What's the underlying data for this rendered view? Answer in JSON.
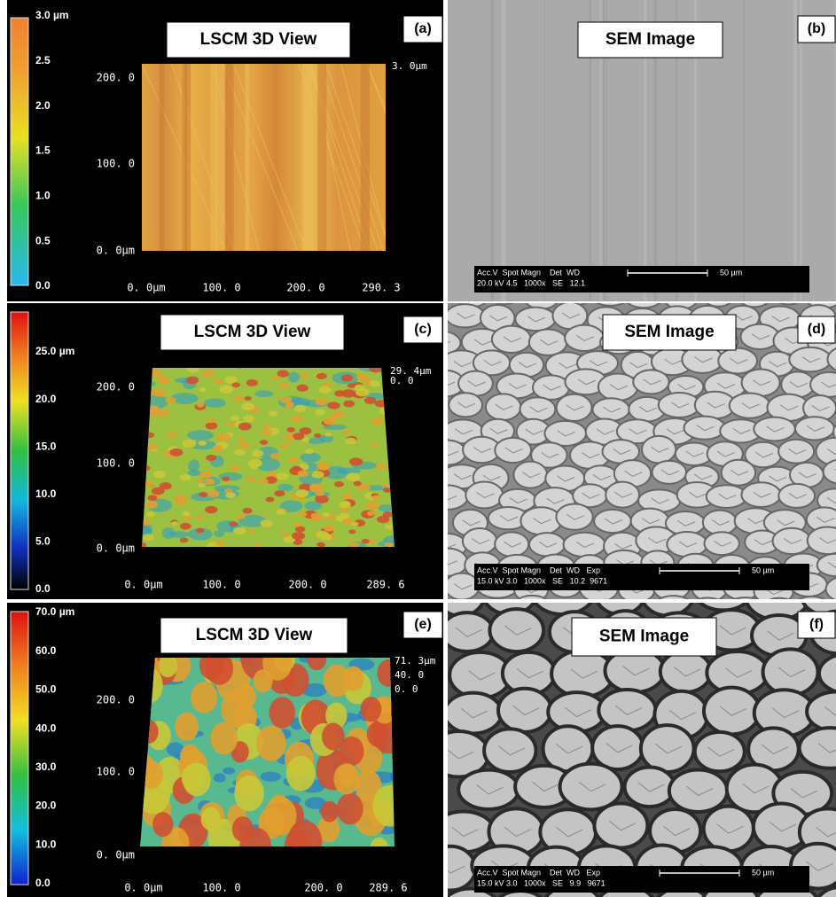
{
  "lscm": [
    {
      "label": "(a)",
      "title": "LSCM 3D View",
      "colorbar": [
        "3.0 µm",
        "2.5",
        "2.0",
        "1.5",
        "1.0",
        "0.5",
        "0.0"
      ],
      "y_labels": [
        "200. 0",
        "100. 0",
        "0. 0µm"
      ],
      "x_labels": [
        "0. 0µm",
        "100. 0",
        "200. 0",
        "290. 3"
      ],
      "z_labels": [
        "3. 0µm"
      ]
    },
    {
      "label": "(c)",
      "title": "LSCM 3D View",
      "colorbar": [
        "25.0 µm",
        "20.0",
        "15.0",
        "10.0",
        "5.0",
        "0.0"
      ],
      "y_labels": [
        "200. 0",
        "100. 0",
        "0. 0µm"
      ],
      "x_labels": [
        "0. 0µm",
        "100. 0",
        "200. 0",
        "289. 6"
      ],
      "z_labels": [
        "29. 4µm",
        "0. 0"
      ]
    },
    {
      "label": "(e)",
      "title": "LSCM 3D View",
      "colorbar": [
        "70.0 µm",
        "60.0",
        "50.0",
        "40.0",
        "30.0",
        "20.0",
        "10.0",
        "0.0"
      ],
      "y_labels": [
        "200. 0",
        "100. 0",
        "0. 0µm"
      ],
      "x_labels": [
        "0. 0µm",
        "100. 0",
        "200. 0",
        "289. 6"
      ],
      "z_labels": [
        "71. 3µm",
        "40. 0",
        "0. 0"
      ]
    }
  ],
  "sem": [
    {
      "label": "(b)",
      "title": "SEM Image",
      "info_header": "Acc.V  Spot Magn    Det  WD",
      "info_values": "20.0 kV 4.5   1000x   SE   12.1",
      "scale": "50 µm"
    },
    {
      "label": "(d)",
      "title": "SEM Image",
      "info_header": "Acc.V  Spot Magn    Det  WD   Exp",
      "info_values": "15.0 kV 3.0   1000x   SE   10.2  9671",
      "scale": "50 µm"
    },
    {
      "label": "(f)",
      "title": "SEM Image",
      "info_header": "Acc.V  Spot Magn    Det  WD   Exp",
      "info_values": "15.0 kV 3.0   1000x   SE   9.9   9671",
      "scale": "50 µm"
    }
  ]
}
